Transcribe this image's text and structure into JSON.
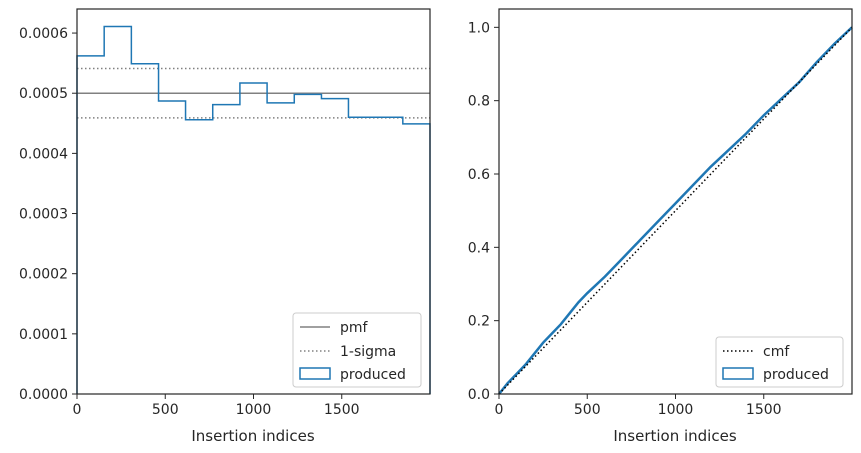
{
  "chart_data": [
    {
      "type": "step",
      "xlabel": "Insertion indices",
      "ylabel": "",
      "xlim": [
        0,
        2000
      ],
      "ylim": [
        0,
        0.00064
      ],
      "xticks": [
        0,
        500,
        1000,
        1500
      ],
      "xtick_labels": [
        "0",
        "500",
        "1000",
        "1500"
      ],
      "yticks": [
        0,
        0.0001,
        0.0002,
        0.0003,
        0.0004,
        0.0005,
        0.0006
      ],
      "ytick_labels": [
        "0.0000",
        "0.0001",
        "0.0002",
        "0.0003",
        "0.0004",
        "0.0005",
        "0.0006"
      ],
      "bin_edges": [
        0,
        154,
        308,
        462,
        615,
        769,
        923,
        1077,
        1231,
        1385,
        1538,
        1692,
        1846,
        2000
      ],
      "series": [
        {
          "name": "pmf",
          "style": "solid",
          "color": "#808080",
          "values": [
            0.0005
          ]
        },
        {
          "name": "1-sigma",
          "style": "dotted",
          "color": "#808080",
          "values": [
            0.000459,
            0.000541
          ]
        },
        {
          "name": "produced",
          "style": "step",
          "color": "#1f77b4",
          "values": [
            0.000562,
            0.000611,
            0.000549,
            0.000487,
            0.000456,
            0.000481,
            0.000517,
            0.000484,
            0.000498,
            0.000491,
            0.00046,
            0.00046,
            0.000449
          ]
        }
      ],
      "legend": {
        "position": "lower right",
        "entries": [
          "pmf",
          "1-sigma",
          "produced"
        ]
      },
      "grid": false
    },
    {
      "type": "line",
      "xlabel": "Insertion indices",
      "ylabel": "",
      "xlim": [
        0,
        2000
      ],
      "ylim": [
        0,
        1.05
      ],
      "xticks": [
        0,
        500,
        1000,
        1500
      ],
      "xtick_labels": [
        "0",
        "500",
        "1000",
        "1500"
      ],
      "yticks": [
        0,
        0.2,
        0.4,
        0.6,
        0.8,
        1.0
      ],
      "ytick_labels": [
        "0.0",
        "0.2",
        "0.4",
        "0.6",
        "0.8",
        "1.0"
      ],
      "series": [
        {
          "name": "cmf",
          "style": "dotted",
          "color": "#000000",
          "x": [
            0,
            2000
          ],
          "y": [
            0,
            1.0
          ]
        },
        {
          "name": "produced",
          "style": "solid",
          "color": "#1f77b4",
          "x": [
            0,
            50,
            100,
            150,
            200,
            250,
            300,
            350,
            400,
            450,
            500,
            600,
            700,
            800,
            900,
            1000,
            1100,
            1200,
            1300,
            1400,
            1500,
            1600,
            1700,
            1800,
            1900,
            2000
          ],
          "y": [
            0,
            0.03,
            0.055,
            0.08,
            0.11,
            0.14,
            0.165,
            0.19,
            0.22,
            0.25,
            0.275,
            0.32,
            0.37,
            0.42,
            0.47,
            0.52,
            0.57,
            0.62,
            0.665,
            0.71,
            0.76,
            0.805,
            0.85,
            0.905,
            0.955,
            1.0
          ]
        }
      ],
      "legend": {
        "position": "lower right",
        "entries": [
          "cmf",
          "produced"
        ]
      },
      "grid": false
    }
  ]
}
